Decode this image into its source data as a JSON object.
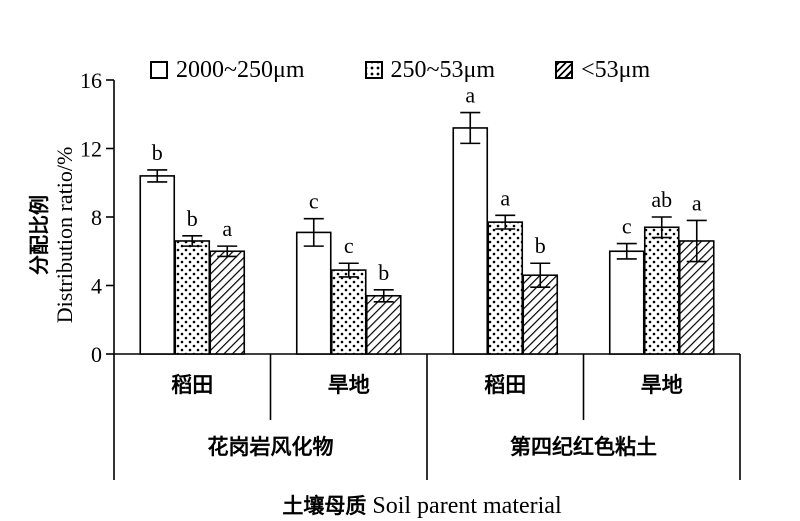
{
  "chart_data": {
    "type": "bar",
    "ylabel_zh": "分配比例",
    "ylabel_en": "Distribution ratio/%",
    "xlabel_zh": "土壤母质",
    "xlabel_en": "Soil parent material",
    "ylim": [
      0,
      16
    ],
    "yticks": [
      "0",
      "4",
      "8",
      "12",
      "16"
    ],
    "legend_position": "top",
    "grid": false,
    "series": [
      {
        "name": "2000~250μm",
        "pattern": "open"
      },
      {
        "name": "250~53μm",
        "pattern": "dots"
      },
      {
        "name": "<53μm",
        "pattern": "hatch"
      }
    ],
    "parent_materials": [
      {
        "label": "花岗岩风化物",
        "land_uses": [
          {
            "label": "稻田",
            "values": [
              10.4,
              6.6,
              6.0
            ],
            "errors": [
              0.35,
              0.3,
              0.3
            ],
            "letters": [
              "b",
              "b",
              "a"
            ]
          },
          {
            "label": "旱地",
            "values": [
              7.1,
              4.9,
              3.4
            ],
            "errors": [
              0.8,
              0.4,
              0.35
            ],
            "letters": [
              "c",
              "c",
              "b"
            ]
          }
        ]
      },
      {
        "label": "第四纪红色粘土",
        "land_uses": [
          {
            "label": "稻田",
            "values": [
              13.2,
              7.7,
              4.6
            ],
            "errors": [
              0.9,
              0.4,
              0.7
            ],
            "letters": [
              "a",
              "a",
              "b"
            ]
          },
          {
            "label": "旱地",
            "values": [
              6.0,
              7.4,
              6.6
            ],
            "errors": [
              0.45,
              0.6,
              1.2
            ],
            "letters": [
              "c",
              "ab",
              "a"
            ]
          }
        ]
      }
    ]
  }
}
